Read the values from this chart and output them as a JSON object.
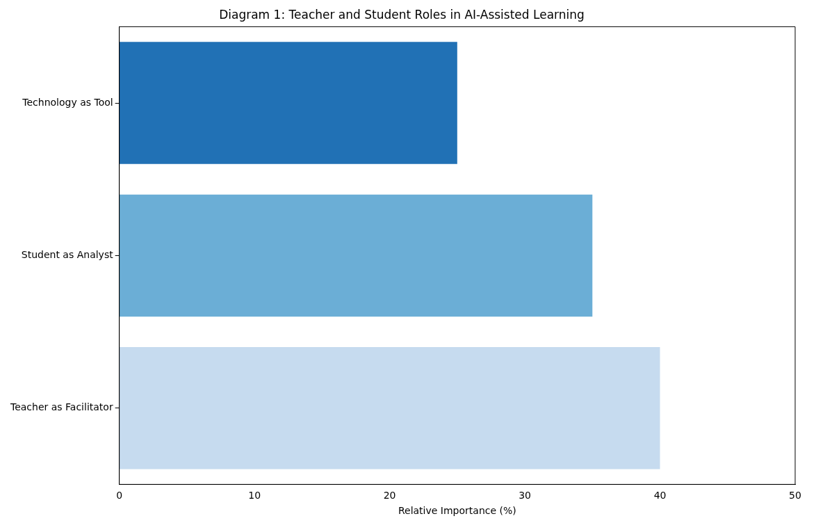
{
  "chart_data": {
    "type": "bar",
    "orientation": "horizontal",
    "title": "Diagram 1: Teacher and Student Roles in AI-Assisted Learning",
    "xlabel": "Relative Importance (%)",
    "categories": [
      "Technology as Tool",
      "Student as Analyst",
      "Teacher as Facilitator"
    ],
    "values": [
      25,
      35,
      40
    ],
    "colors": [
      "#2171b5",
      "#6baed6",
      "#c6dbef"
    ],
    "xlim": [
      0,
      50
    ],
    "xticks": [
      0,
      10,
      20,
      30,
      40,
      50
    ],
    "grid": false,
    "legend": false
  }
}
